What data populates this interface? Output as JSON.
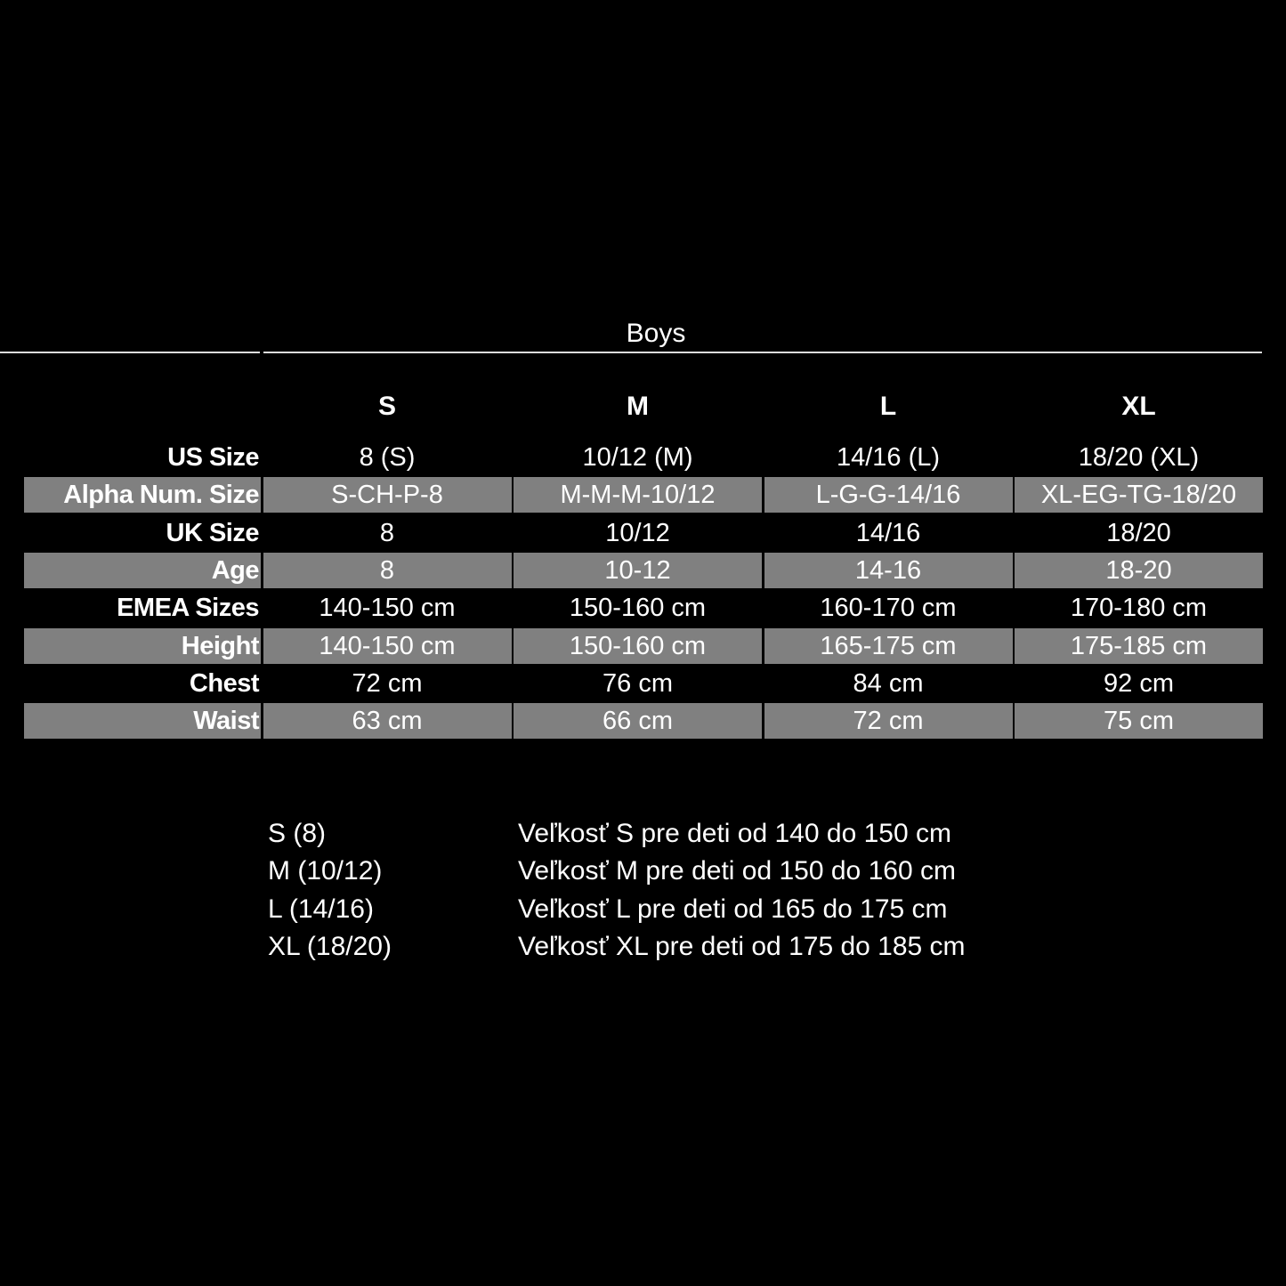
{
  "title": "Boys",
  "table": {
    "columns": [
      "S",
      "M",
      "L",
      "XL"
    ],
    "rows": [
      {
        "label": "US Size",
        "values": [
          "8 (S)",
          "10/12 (M)",
          "14/16 (L)",
          "18/20 (XL)"
        ],
        "shaded": false
      },
      {
        "label": "Alpha Num. Size",
        "values": [
          "S-CH-P-8",
          "M-M-M-10/12",
          "L-G-G-14/16",
          "XL-EG-TG-18/20"
        ],
        "shaded": true
      },
      {
        "label": "UK Size",
        "values": [
          "8",
          "10/12",
          "14/16",
          "18/20"
        ],
        "shaded": false
      },
      {
        "label": "Age",
        "values": [
          "8",
          "10-12",
          "14-16",
          "18-20"
        ],
        "shaded": true
      },
      {
        "label": "EMEA Sizes",
        "values": [
          "140-150 cm",
          "150-160 cm",
          "160-170 cm",
          "170-180 cm"
        ],
        "shaded": false
      },
      {
        "label": "Height",
        "values": [
          "140-150 cm",
          "150-160 cm",
          "165-175 cm",
          "175-185 cm"
        ],
        "shaded": true
      },
      {
        "label": "Chest",
        "values": [
          "72 cm",
          "76 cm",
          "84 cm",
          "92 cm"
        ],
        "shaded": false
      },
      {
        "label": "Waist",
        "values": [
          "63 cm",
          "66 cm",
          "72 cm",
          "75 cm"
        ],
        "shaded": true
      }
    ]
  },
  "notes": [
    {
      "size": "S (8)",
      "text": "Veľkosť S pre deti od 140 do 150 cm"
    },
    {
      "size": "M (10/12)",
      "text": "Veľkosť M pre deti od 150 do 160 cm"
    },
    {
      "size": "L (14/16)",
      "text": "Veľkosť L pre deti od 165 do 175 cm"
    },
    {
      "size": "XL (18/20)",
      "text": "Veľkosť XL pre deti od 175 do 185 cm"
    }
  ],
  "colors": {
    "background": "#000000",
    "shaded_row": "#808080",
    "text": "#ffffff"
  }
}
